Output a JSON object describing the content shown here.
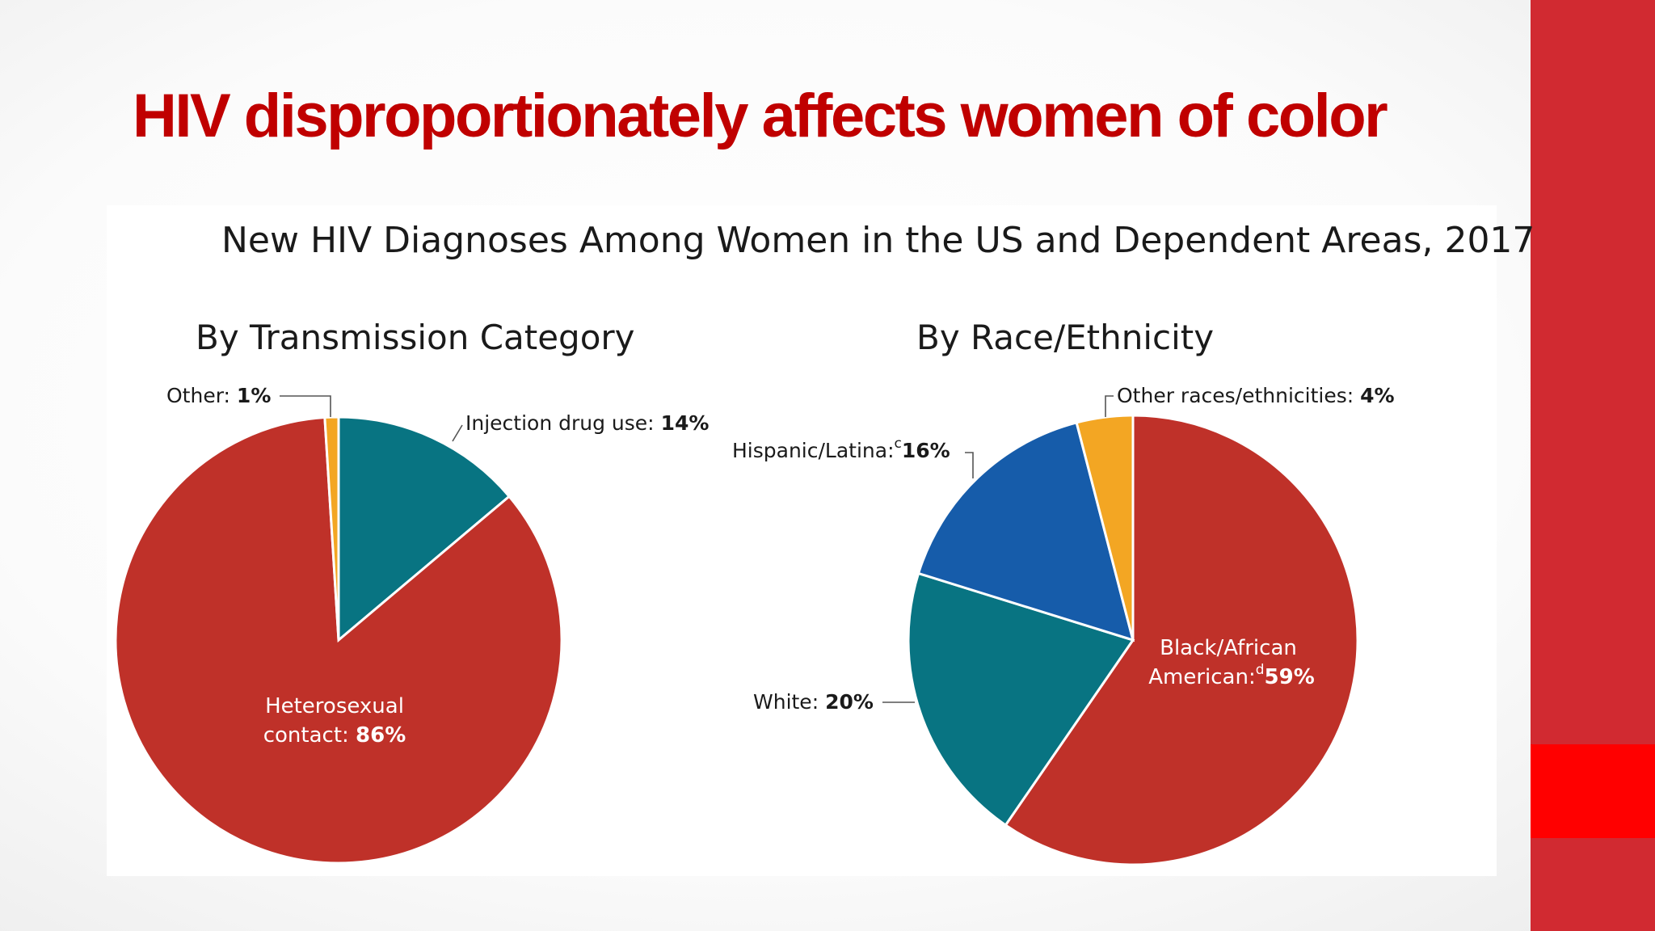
{
  "slide": {
    "title": "HIV disproportionately affects women of color",
    "accent_color": "#D12A31",
    "accent_block_color": "#FF0000",
    "title_color": "#C00000"
  },
  "chart_data": [
    {
      "type": "pie",
      "figure_title": "New HIV Diagnoses Among Women in the US and Dependent Areas, 2017",
      "title": "By Transmission Category",
      "slices": [
        {
          "label": "Heterosexual",
          "label2": "contact:",
          "value": 86,
          "display": "86%",
          "color": "#BF3129"
        },
        {
          "label": "Injection drug use:",
          "value": 14,
          "display": "14%",
          "color": "#087482"
        },
        {
          "label": "Other:",
          "value": 1,
          "display": "1%",
          "color": "#F3A623"
        }
      ]
    },
    {
      "type": "pie",
      "title": "By Race/Ethnicity",
      "slices": [
        {
          "label": "Black/African",
          "label2": "American:",
          "sup": "d",
          "value": 59,
          "display": "59%",
          "color": "#BF3129"
        },
        {
          "label": "White:",
          "value": 20,
          "display": "20%",
          "color": "#087482"
        },
        {
          "label": "Hispanic/Latina:",
          "sup": "c",
          "value": 16,
          "display": "16%",
          "color": "#165CAA"
        },
        {
          "label": "Other races/ethnicities:",
          "value": 4,
          "display": "4%",
          "color": "#F3A623"
        }
      ]
    }
  ]
}
